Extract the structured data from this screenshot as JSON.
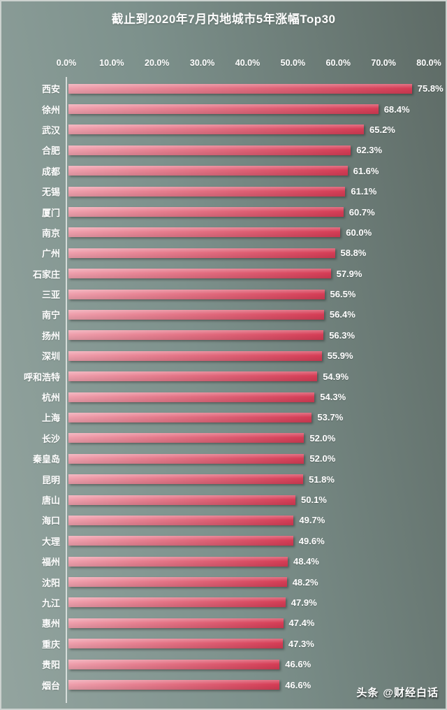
{
  "title": "截止到2020年7月内地城市5年涨幅Top30",
  "watermark": {
    "brand": "头条",
    "handle": "@财经白话"
  },
  "colors": {
    "bar_gradient_start": "#EFA0AD",
    "bar_gradient_end": "#D63C55",
    "background_light": "#93A49F",
    "background_dark": "#5E6B66",
    "text": "#FFFFFF"
  },
  "chart_data": {
    "type": "bar",
    "orientation": "horizontal",
    "title": "截止到2020年7月内地城市5年涨幅Top30",
    "categories": [
      "西安",
      "徐州",
      "武汉",
      "合肥",
      "成都",
      "无锡",
      "厦门",
      "南京",
      "广州",
      "石家庄",
      "三亚",
      "南宁",
      "扬州",
      "深圳",
      "呼和浩特",
      "杭州",
      "上海",
      "长沙",
      "秦皇岛",
      "昆明",
      "唐山",
      "海口",
      "大理",
      "福州",
      "沈阳",
      "九江",
      "惠州",
      "重庆",
      "贵阳",
      "烟台"
    ],
    "values": [
      75.8,
      68.4,
      65.2,
      62.3,
      61.6,
      61.1,
      60.7,
      60.0,
      58.8,
      57.9,
      56.5,
      56.4,
      56.3,
      55.9,
      54.9,
      54.3,
      53.7,
      52.0,
      52.0,
      51.8,
      50.1,
      49.7,
      49.6,
      48.4,
      48.2,
      47.9,
      47.4,
      47.3,
      46.6,
      46.6
    ],
    "value_labels": [
      "75.8%",
      "68.4%",
      "65.2%",
      "62.3%",
      "61.6%",
      "61.1%",
      "60.7%",
      "60.0%",
      "58.8%",
      "57.9%",
      "56.5%",
      "56.4%",
      "56.3%",
      "55.9%",
      "54.9%",
      "54.3%",
      "53.7%",
      "52.0%",
      "52.0%",
      "51.8%",
      "50.1%",
      "49.7%",
      "49.6%",
      "48.4%",
      "48.2%",
      "47.9%",
      "47.4%",
      "47.3%",
      "46.6%",
      "46.6%"
    ],
    "x_ticks": [
      "0.0%",
      "10.0%",
      "20.0%",
      "30.0%",
      "40.0%",
      "50.0%",
      "60.0%",
      "70.0%",
      "80.0%"
    ],
    "xlim": [
      0,
      80
    ],
    "grid": false,
    "legend": false
  }
}
